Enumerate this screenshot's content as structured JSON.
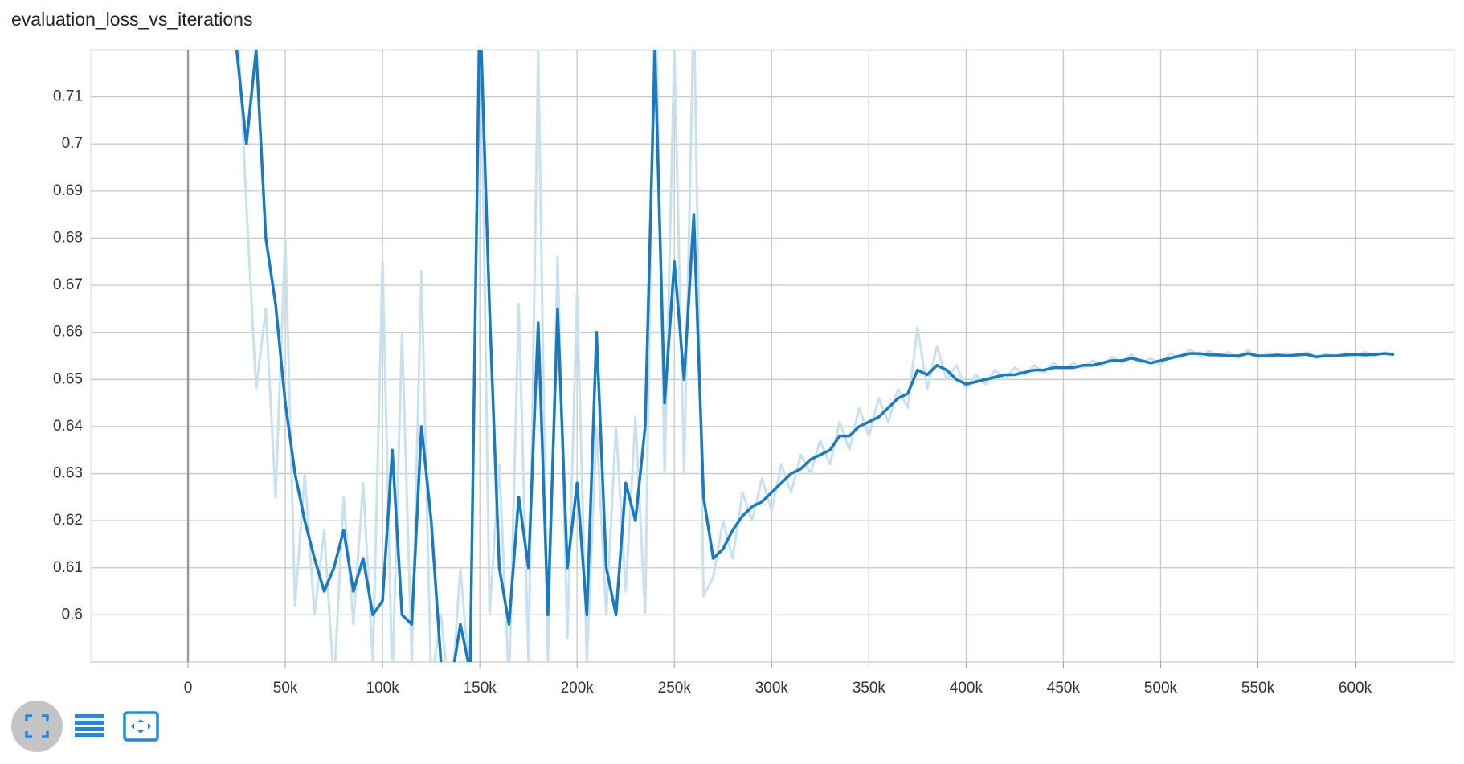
{
  "chart_data": {
    "type": "line",
    "title": "evaluation_loss_vs_iterations",
    "x": [
      25000,
      30000,
      35000,
      40000,
      45000,
      50000,
      55000,
      60000,
      65000,
      70000,
      75000,
      80000,
      85000,
      90000,
      95000,
      100000,
      105000,
      110000,
      115000,
      120000,
      125000,
      130000,
      135000,
      140000,
      145000,
      150000,
      155000,
      160000,
      165000,
      170000,
      175000,
      180000,
      185000,
      190000,
      195000,
      200000,
      205000,
      210000,
      215000,
      220000,
      225000,
      230000,
      235000,
      240000,
      245000,
      250000,
      255000,
      260000,
      265000,
      270000,
      275000,
      280000,
      285000,
      290000,
      295000,
      300000,
      305000,
      310000,
      315000,
      320000,
      325000,
      330000,
      335000,
      340000,
      345000,
      350000,
      355000,
      360000,
      365000,
      370000,
      375000,
      380000,
      385000,
      390000,
      395000,
      400000,
      405000,
      410000,
      415000,
      420000,
      425000,
      430000,
      435000,
      440000,
      445000,
      450000,
      455000,
      460000,
      465000,
      470000,
      475000,
      480000,
      485000,
      490000,
      495000,
      500000,
      505000,
      510000,
      515000,
      520000,
      525000,
      530000,
      535000,
      540000,
      545000,
      550000,
      555000,
      560000,
      565000,
      570000,
      575000,
      580000,
      585000,
      590000,
      595000,
      600000,
      605000,
      610000,
      615000,
      620000
    ],
    "series": [
      {
        "color": "#c9e1ef",
        "values": [
          0.73,
          0.687,
          0.648,
          0.665,
          0.625,
          0.68,
          0.602,
          0.63,
          0.6,
          0.618,
          0.585,
          0.625,
          0.598,
          0.628,
          0.59,
          0.675,
          0.585,
          0.66,
          0.59,
          0.673,
          0.585,
          0.6,
          0.58,
          0.61,
          0.585,
          0.74,
          0.6,
          0.632,
          0.585,
          0.666,
          0.59,
          0.72,
          0.59,
          0.676,
          0.595,
          0.668,
          0.59,
          0.64,
          0.6,
          0.64,
          0.605,
          0.642,
          0.6,
          0.74,
          0.63,
          0.72,
          0.63,
          0.73,
          0.604,
          0.608,
          0.62,
          0.612,
          0.626,
          0.62,
          0.629,
          0.622,
          0.632,
          0.626,
          0.634,
          0.63,
          0.637,
          0.632,
          0.641,
          0.635,
          0.644,
          0.638,
          0.646,
          0.641,
          0.648,
          0.644,
          0.661,
          0.648,
          0.657,
          0.65,
          0.653,
          0.648,
          0.651,
          0.649,
          0.652,
          0.65,
          0.6525,
          0.651,
          0.653,
          0.6515,
          0.6535,
          0.652,
          0.6535,
          0.6525,
          0.654,
          0.653,
          0.6548,
          0.6535,
          0.6553,
          0.6535,
          0.6545,
          0.6532,
          0.6555,
          0.6545,
          0.6563,
          0.655,
          0.656,
          0.6548,
          0.6558,
          0.6545,
          0.6562,
          0.6545,
          0.6556,
          0.6548,
          0.6556,
          0.6547,
          0.6558,
          0.6545,
          0.6555,
          0.6548,
          0.6556,
          0.655,
          0.6558,
          0.655,
          0.6557,
          0.6553
        ]
      },
      {
        "color": "#1a7abf",
        "values": [
          0.72,
          0.7,
          0.72,
          0.68,
          0.666,
          0.645,
          0.63,
          0.62,
          0.612,
          0.605,
          0.61,
          0.618,
          0.605,
          0.612,
          0.6,
          0.603,
          0.635,
          0.6,
          0.598,
          0.64,
          0.62,
          0.59,
          0.585,
          0.598,
          0.588,
          0.73,
          0.665,
          0.61,
          0.598,
          0.625,
          0.61,
          0.662,
          0.6,
          0.665,
          0.61,
          0.628,
          0.6,
          0.66,
          0.61,
          0.6,
          0.628,
          0.62,
          0.64,
          0.72,
          0.645,
          0.675,
          0.65,
          0.685,
          0.625,
          0.612,
          0.614,
          0.618,
          0.621,
          0.623,
          0.624,
          0.626,
          0.628,
          0.63,
          0.631,
          0.633,
          0.634,
          0.635,
          0.638,
          0.638,
          0.64,
          0.641,
          0.642,
          0.644,
          0.646,
          0.647,
          0.652,
          0.651,
          0.653,
          0.652,
          0.65,
          0.649,
          0.6495,
          0.65,
          0.6505,
          0.651,
          0.651,
          0.6515,
          0.652,
          0.652,
          0.6525,
          0.6525,
          0.6525,
          0.653,
          0.653,
          0.6535,
          0.654,
          0.654,
          0.6545,
          0.654,
          0.6535,
          0.654,
          0.6545,
          0.655,
          0.6555,
          0.6555,
          0.6552,
          0.6552,
          0.655,
          0.655,
          0.6555,
          0.655,
          0.655,
          0.6552,
          0.655,
          0.6552,
          0.6553,
          0.6548,
          0.655,
          0.655,
          0.6552,
          0.6553,
          0.6552,
          0.6553,
          0.6555,
          0.6553
        ]
      }
    ],
    "xlim": [
      -50000,
      651000
    ],
    "ylim": [
      0.59,
      0.72
    ],
    "xticks": [
      0,
      {
        "value": 50000,
        "label": "50k"
      },
      {
        "value": 100000,
        "label": "100k"
      },
      {
        "value": 150000,
        "label": "150k"
      },
      {
        "value": 200000,
        "label": "200k"
      },
      {
        "value": 250000,
        "label": "250k"
      },
      {
        "value": 300000,
        "label": "300k"
      },
      {
        "value": 350000,
        "label": "350k"
      },
      {
        "value": 400000,
        "label": "400k"
      },
      {
        "value": 450000,
        "label": "450k"
      },
      {
        "value": 500000,
        "label": "500k"
      },
      {
        "value": 550000,
        "label": "550k"
      },
      {
        "value": 600000,
        "label": "600k"
      }
    ],
    "yticks": [
      0.6,
      0.61,
      0.62,
      0.63,
      0.64,
      0.65,
      0.66,
      0.67,
      0.68,
      0.69,
      0.7,
      0.71
    ],
    "grid": true
  }
}
